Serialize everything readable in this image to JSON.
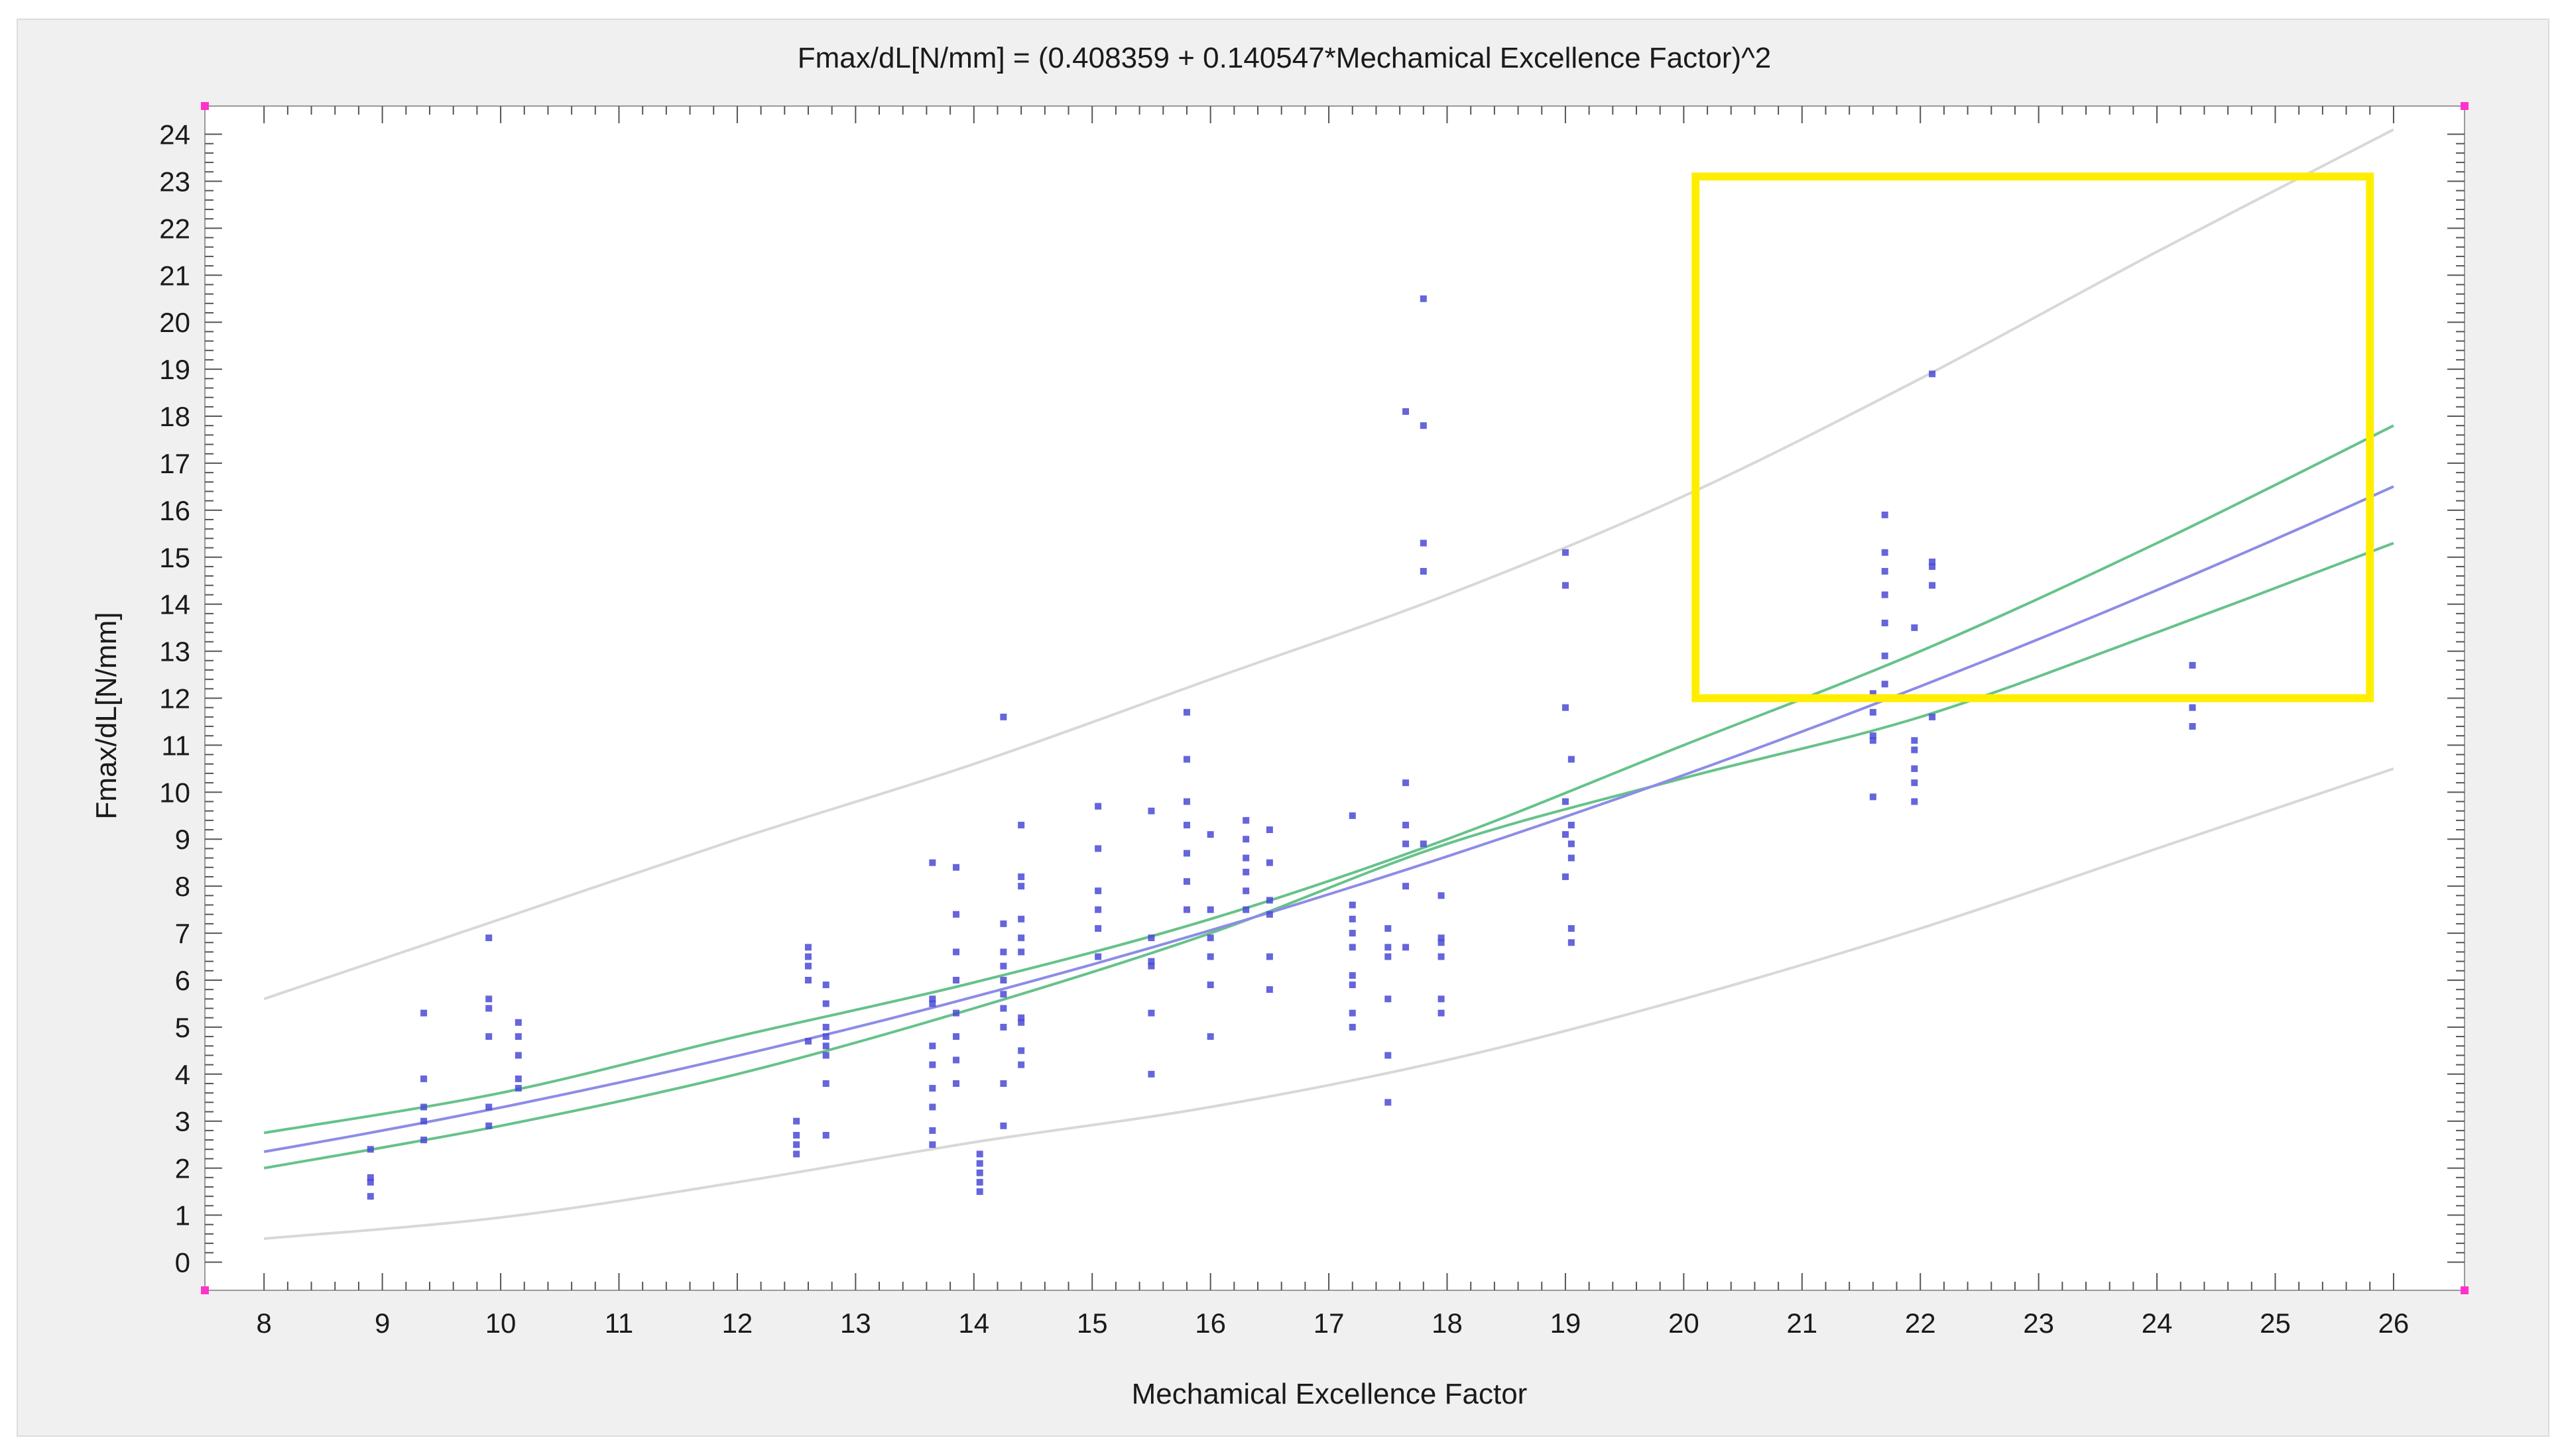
{
  "chart_data": {
    "type": "scatter",
    "title": "Fmax/dL[N/mm] = (0.408359 + 0.140547*Mechamical Excellence Factor)^2",
    "xlabel": "Mechamical Excellence Factor",
    "ylabel": "Fmax/dL[N/mm]",
    "xlim": [
      7.5,
      26.6
    ],
    "ylim": [
      -0.6,
      24.6
    ],
    "xticks": [
      8,
      9,
      10,
      11,
      12,
      13,
      14,
      15,
      16,
      17,
      18,
      19,
      20,
      21,
      22,
      23,
      24,
      25,
      26
    ],
    "yticks": [
      0,
      1,
      2,
      3,
      4,
      5,
      6,
      7,
      8,
      9,
      10,
      11,
      12,
      13,
      14,
      15,
      16,
      17,
      18,
      19,
      20,
      21,
      22,
      23,
      24
    ],
    "grid": false,
    "legend": "none",
    "fit": {
      "intercept": 0.408359,
      "slope": 0.140547,
      "x_range": [
        8,
        26
      ]
    },
    "confidence_band": {
      "lower": [
        [
          8,
          2.0
        ],
        [
          10,
          2.9
        ],
        [
          12,
          4.0
        ],
        [
          14,
          5.4
        ],
        [
          16,
          7.0
        ],
        [
          18,
          8.9
        ],
        [
          20,
          10.3
        ],
        [
          22,
          11.6
        ],
        [
          24,
          13.4
        ],
        [
          26,
          15.3
        ]
      ],
      "upper": [
        [
          8,
          2.75
        ],
        [
          10,
          3.6
        ],
        [
          12,
          4.8
        ],
        [
          14,
          5.95
        ],
        [
          16,
          7.3
        ],
        [
          18,
          9.0
        ],
        [
          20,
          11.0
        ],
        [
          22,
          13.0
        ],
        [
          24,
          15.3
        ],
        [
          26,
          17.8
        ]
      ]
    },
    "prediction_band": {
      "lower": [
        [
          8,
          0.5
        ],
        [
          10,
          0.95
        ],
        [
          12,
          1.7
        ],
        [
          14,
          2.55
        ],
        [
          16,
          3.3
        ],
        [
          18,
          4.3
        ],
        [
          20,
          5.6
        ],
        [
          22,
          7.1
        ],
        [
          24,
          8.8
        ],
        [
          26,
          10.5
        ]
      ],
      "upper": [
        [
          8,
          5.6
        ],
        [
          10,
          7.3
        ],
        [
          12,
          9.0
        ],
        [
          14,
          10.6
        ],
        [
          16,
          12.4
        ],
        [
          18,
          14.2
        ],
        [
          20,
          16.3
        ],
        [
          22,
          18.8
        ],
        [
          24,
          21.5
        ],
        [
          26,
          24.1
        ]
      ]
    },
    "points": [
      [
        8.9,
        2.4
      ],
      [
        8.9,
        1.8
      ],
      [
        8.9,
        1.7
      ],
      [
        8.9,
        1.4
      ],
      [
        9.35,
        5.3
      ],
      [
        9.35,
        3.9
      ],
      [
        9.35,
        3.3
      ],
      [
        9.35,
        3.0
      ],
      [
        9.35,
        2.6
      ],
      [
        9.9,
        6.9
      ],
      [
        9.9,
        5.6
      ],
      [
        9.9,
        5.4
      ],
      [
        9.9,
        4.8
      ],
      [
        9.9,
        3.3
      ],
      [
        9.9,
        2.9
      ],
      [
        10.15,
        5.1
      ],
      [
        10.15,
        4.8
      ],
      [
        10.15,
        4.4
      ],
      [
        10.15,
        3.9
      ],
      [
        10.15,
        3.7
      ],
      [
        12.5,
        3.0
      ],
      [
        12.5,
        2.7
      ],
      [
        12.5,
        2.5
      ],
      [
        12.5,
        2.3
      ],
      [
        12.6,
        6.7
      ],
      [
        12.6,
        6.5
      ],
      [
        12.6,
        6.3
      ],
      [
        12.6,
        6.0
      ],
      [
        12.6,
        4.7
      ],
      [
        12.75,
        5.9
      ],
      [
        12.75,
        5.5
      ],
      [
        12.75,
        5.0
      ],
      [
        12.75,
        4.8
      ],
      [
        12.75,
        4.6
      ],
      [
        12.75,
        4.4
      ],
      [
        12.75,
        3.8
      ],
      [
        12.75,
        2.7
      ],
      [
        13.65,
        8.5
      ],
      [
        13.65,
        5.6
      ],
      [
        13.65,
        5.5
      ],
      [
        13.65,
        4.6
      ],
      [
        13.65,
        4.2
      ],
      [
        13.65,
        3.7
      ],
      [
        13.65,
        3.3
      ],
      [
        13.65,
        2.8
      ],
      [
        13.65,
        2.5
      ],
      [
        13.85,
        8.4
      ],
      [
        13.85,
        7.4
      ],
      [
        13.85,
        6.6
      ],
      [
        13.85,
        6.0
      ],
      [
        13.85,
        5.3
      ],
      [
        13.85,
        4.8
      ],
      [
        13.85,
        4.3
      ],
      [
        13.85,
        3.8
      ],
      [
        14.05,
        2.3
      ],
      [
        14.05,
        2.1
      ],
      [
        14.05,
        1.9
      ],
      [
        14.05,
        1.7
      ],
      [
        14.05,
        1.5
      ],
      [
        14.25,
        11.6
      ],
      [
        14.25,
        7.2
      ],
      [
        14.25,
        6.6
      ],
      [
        14.25,
        6.3
      ],
      [
        14.25,
        6.0
      ],
      [
        14.25,
        5.7
      ],
      [
        14.25,
        5.4
      ],
      [
        14.25,
        5.0
      ],
      [
        14.25,
        3.8
      ],
      [
        14.25,
        2.9
      ],
      [
        14.4,
        9.3
      ],
      [
        14.4,
        8.2
      ],
      [
        14.4,
        8.0
      ],
      [
        14.4,
        7.3
      ],
      [
        14.4,
        6.9
      ],
      [
        14.4,
        6.6
      ],
      [
        14.4,
        5.2
      ],
      [
        14.4,
        5.1
      ],
      [
        14.4,
        4.5
      ],
      [
        14.4,
        4.2
      ],
      [
        15.05,
        9.7
      ],
      [
        15.05,
        8.8
      ],
      [
        15.05,
        7.9
      ],
      [
        15.05,
        7.5
      ],
      [
        15.05,
        7.1
      ],
      [
        15.05,
        6.5
      ],
      [
        15.5,
        9.6
      ],
      [
        15.5,
        6.9
      ],
      [
        15.5,
        6.4
      ],
      [
        15.5,
        6.3
      ],
      [
        15.5,
        5.3
      ],
      [
        15.5,
        4.0
      ],
      [
        15.8,
        11.7
      ],
      [
        15.8,
        10.7
      ],
      [
        15.8,
        9.8
      ],
      [
        15.8,
        9.3
      ],
      [
        15.8,
        8.7
      ],
      [
        15.8,
        8.1
      ],
      [
        15.8,
        7.5
      ],
      [
        16.0,
        9.1
      ],
      [
        16.0,
        7.5
      ],
      [
        16.0,
        6.9
      ],
      [
        16.0,
        6.5
      ],
      [
        16.0,
        5.9
      ],
      [
        16.0,
        4.8
      ],
      [
        16.3,
        9.4
      ],
      [
        16.3,
        9.0
      ],
      [
        16.3,
        8.6
      ],
      [
        16.3,
        8.3
      ],
      [
        16.3,
        7.9
      ],
      [
        16.3,
        7.5
      ],
      [
        16.5,
        9.2
      ],
      [
        16.5,
        8.5
      ],
      [
        16.5,
        7.7
      ],
      [
        16.5,
        7.4
      ],
      [
        16.5,
        6.5
      ],
      [
        16.5,
        5.8
      ],
      [
        17.2,
        9.5
      ],
      [
        17.2,
        7.6
      ],
      [
        17.2,
        7.3
      ],
      [
        17.2,
        7.0
      ],
      [
        17.2,
        6.7
      ],
      [
        17.2,
        6.1
      ],
      [
        17.2,
        5.9
      ],
      [
        17.2,
        5.3
      ],
      [
        17.2,
        5.0
      ],
      [
        17.5,
        7.1
      ],
      [
        17.5,
        6.7
      ],
      [
        17.5,
        6.5
      ],
      [
        17.5,
        5.6
      ],
      [
        17.5,
        4.4
      ],
      [
        17.5,
        3.4
      ],
      [
        17.65,
        18.1
      ],
      [
        17.65,
        10.2
      ],
      [
        17.65,
        9.3
      ],
      [
        17.65,
        8.9
      ],
      [
        17.65,
        8.0
      ],
      [
        17.65,
        6.7
      ],
      [
        17.8,
        20.5
      ],
      [
        17.8,
        17.8
      ],
      [
        17.8,
        15.3
      ],
      [
        17.8,
        14.7
      ],
      [
        17.8,
        8.9
      ],
      [
        17.95,
        7.8
      ],
      [
        17.95,
        6.9
      ],
      [
        17.95,
        6.8
      ],
      [
        17.95,
        6.5
      ],
      [
        17.95,
        5.6
      ],
      [
        17.95,
        5.3
      ],
      [
        19.0,
        15.1
      ],
      [
        19.0,
        14.4
      ],
      [
        19.0,
        11.8
      ],
      [
        19.0,
        9.8
      ],
      [
        19.0,
        9.1
      ],
      [
        19.0,
        8.2
      ],
      [
        19.05,
        10.7
      ],
      [
        19.05,
        9.3
      ],
      [
        19.05,
        8.9
      ],
      [
        19.05,
        8.6
      ],
      [
        19.05,
        7.1
      ],
      [
        19.05,
        6.8
      ],
      [
        21.6,
        12.1
      ],
      [
        21.6,
        11.7
      ],
      [
        21.6,
        11.2
      ],
      [
        21.6,
        11.1
      ],
      [
        21.6,
        9.9
      ],
      [
        21.7,
        15.9
      ],
      [
        21.7,
        15.1
      ],
      [
        21.7,
        14.7
      ],
      [
        21.7,
        14.2
      ],
      [
        21.7,
        13.6
      ],
      [
        21.7,
        12.9
      ],
      [
        21.7,
        12.3
      ],
      [
        21.95,
        13.5
      ],
      [
        21.95,
        11.1
      ],
      [
        21.95,
        10.9
      ],
      [
        21.95,
        10.5
      ],
      [
        21.95,
        10.2
      ],
      [
        21.95,
        9.8
      ],
      [
        22.1,
        18.9
      ],
      [
        22.1,
        14.9
      ],
      [
        22.1,
        14.8
      ],
      [
        22.1,
        14.4
      ],
      [
        22.1,
        11.6
      ],
      [
        24.3,
        12.7
      ],
      [
        24.3,
        11.8
      ],
      [
        24.3,
        11.4
      ]
    ],
    "highlight_box": {
      "x0": 20.1,
      "x1": 25.8,
      "y0": 12.0,
      "y1": 23.1,
      "color": "#ffee00"
    },
    "colors": {
      "points": "#4a4ad6",
      "fit_line": "#8c8ce6",
      "confidence": "#66c28a",
      "prediction": "#d8d8d8",
      "plot_bg": "#ffffff",
      "frame_bg": "#f0f0f0",
      "corner_marker": "#ff33cc"
    }
  }
}
